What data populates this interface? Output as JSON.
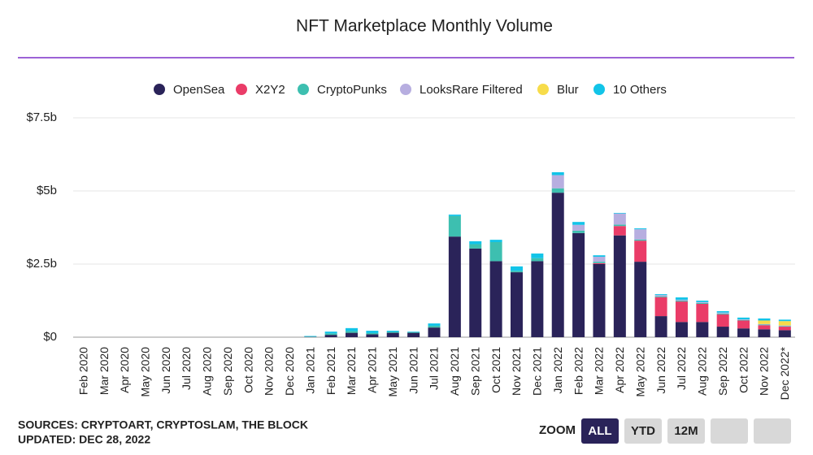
{
  "chart_data": {
    "type": "stacked_bar",
    "title": "NFT Marketplace Monthly Volume",
    "categories": [
      "Feb 2020",
      "Mar 2020",
      "Apr 2020",
      "May 2020",
      "Jun 2020",
      "Jul 2020",
      "Aug 2020",
      "Sep 2020",
      "Oct 2020",
      "Nov 2020",
      "Dec 2020",
      "Jan 2021",
      "Feb 2021",
      "Mar 2021",
      "Apr 2021",
      "May 2021",
      "Jun 2021",
      "Jul 2021",
      "Aug 2021",
      "Sep 2021",
      "Oct 2021",
      "Nov 2021",
      "Dec 2021",
      "Jan 2022",
      "Feb 2022",
      "Mar 2022",
      "Apr 2022",
      "May 2022",
      "Jun 2022",
      "Jul 2022",
      "Aug 2022",
      "Sep 2022",
      "Oct 2022",
      "Nov 2022",
      "Dec 2022*"
    ],
    "series": [
      {
        "name": "OpenSea",
        "color": "#2a2359",
        "values": [
          0,
          0,
          0,
          0,
          0,
          0,
          0,
          0,
          0,
          0,
          0,
          0.01,
          0.08,
          0.15,
          0.1,
          0.15,
          0.15,
          0.33,
          3.44,
          3.03,
          2.6,
          2.22,
          2.6,
          4.94,
          3.56,
          2.5,
          3.48,
          2.58,
          0.72,
          0.52,
          0.52,
          0.36,
          0.3,
          0.27,
          0.24
        ]
      },
      {
        "name": "X2Y2",
        "color": "#ea3c68",
        "values": [
          0,
          0,
          0,
          0,
          0,
          0,
          0,
          0,
          0,
          0,
          0,
          0,
          0,
          0,
          0,
          0,
          0,
          0,
          0,
          0,
          0,
          0,
          0,
          0,
          0,
          0.03,
          0.32,
          0.72,
          0.65,
          0.7,
          0.62,
          0.42,
          0.27,
          0.14,
          0.12
        ]
      },
      {
        "name": "CryptoPunks",
        "color": "#3dbfb0",
        "values": [
          0,
          0,
          0,
          0,
          0,
          0,
          0,
          0,
          0,
          0,
          0,
          0.01,
          0.05,
          0.06,
          0.04,
          0.03,
          0.02,
          0.06,
          0.7,
          0.15,
          0.65,
          0.05,
          0.1,
          0.15,
          0.08,
          0.05,
          0.05,
          0.04,
          0.03,
          0.03,
          0.03,
          0.03,
          0.02,
          0.02,
          0.02
        ]
      },
      {
        "name": "LooksRare Filtered",
        "color": "#b7aee0",
        "values": [
          0,
          0,
          0,
          0,
          0,
          0,
          0,
          0,
          0,
          0,
          0,
          0,
          0,
          0,
          0,
          0,
          0,
          0,
          0,
          0,
          0,
          0,
          0,
          0.45,
          0.2,
          0.17,
          0.38,
          0.35,
          0.04,
          0.03,
          0.03,
          0.03,
          0.02,
          0.02,
          0.02
        ]
      },
      {
        "name": "Blur",
        "color": "#f7dc4a",
        "values": [
          0,
          0,
          0,
          0,
          0,
          0,
          0,
          0,
          0,
          0,
          0,
          0,
          0,
          0,
          0,
          0,
          0,
          0,
          0,
          0,
          0,
          0,
          0,
          0,
          0,
          0,
          0,
          0,
          0,
          0,
          0,
          0,
          0,
          0.12,
          0.15
        ]
      },
      {
        "name": "10 Others",
        "color": "#12c4e8",
        "values": [
          0,
          0,
          0,
          0,
          0,
          0,
          0,
          0,
          0,
          0,
          0,
          0.02,
          0.06,
          0.1,
          0.08,
          0.04,
          0.02,
          0.08,
          0.05,
          0.1,
          0.08,
          0.15,
          0.16,
          0.1,
          0.1,
          0.05,
          0.02,
          0.03,
          0.03,
          0.08,
          0.05,
          0.05,
          0.06,
          0.07,
          0.05
        ]
      }
    ],
    "ylim": [
      0,
      7.5
    ],
    "yticks": [
      {
        "value": 0,
        "label": "$0"
      },
      {
        "value": 2.5,
        "label": "$2.5b"
      },
      {
        "value": 5,
        "label": "$5b"
      },
      {
        "value": 7.5,
        "label": "$7.5b"
      }
    ],
    "grid": true
  },
  "footer": {
    "sources": "SOURCES: CRYPTOART, CRYPTOSLAM, THE BLOCK",
    "updated": "UPDATED: DEC 28, 2022"
  },
  "zoom": {
    "label": "ZOOM",
    "buttons": [
      "ALL",
      "YTD",
      "12M"
    ]
  }
}
